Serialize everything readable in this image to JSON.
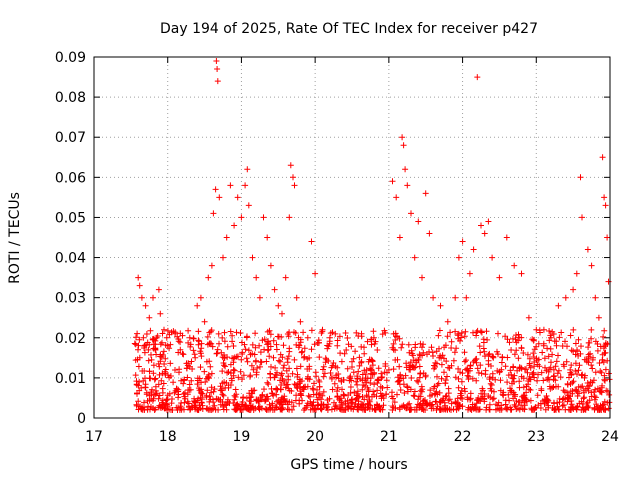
{
  "chart_data": {
    "type": "scatter",
    "title": "Day 194 of 2025, Rate Of TEC Index for receiver p427",
    "xlabel": "GPS time / hours",
    "ylabel": "ROTI / TECUs",
    "xlim": [
      17,
      24
    ],
    "ylim": [
      0,
      0.09
    ],
    "xticks": [
      "17",
      "18",
      "19",
      "20",
      "21",
      "22",
      "23",
      "24"
    ],
    "yticks": [
      "0",
      "0.01",
      "0.02",
      "0.03",
      "0.04",
      "0.05",
      "0.06",
      "0.07",
      "0.08",
      "0.09"
    ],
    "grid": true,
    "marker": "+",
    "color": "#ff0000",
    "series": [
      {
        "name": "ROTI",
        "points": [
          [
            17.6,
            0.035
          ],
          [
            17.62,
            0.033
          ],
          [
            17.65,
            0.03
          ],
          [
            17.7,
            0.028
          ],
          [
            17.75,
            0.025
          ],
          [
            17.8,
            0.03
          ],
          [
            17.85,
            0.02
          ],
          [
            17.88,
            0.032
          ],
          [
            17.9,
            0.026
          ],
          [
            17.95,
            0.022
          ],
          [
            18.0,
            0.018
          ],
          [
            18.1,
            0.021
          ],
          [
            18.2,
            0.016
          ],
          [
            18.3,
            0.02
          ],
          [
            18.4,
            0.028
          ],
          [
            18.45,
            0.03
          ],
          [
            18.5,
            0.024
          ],
          [
            18.55,
            0.035
          ],
          [
            18.6,
            0.038
          ],
          [
            18.62,
            0.051
          ],
          [
            18.65,
            0.057
          ],
          [
            18.66,
            0.089
          ],
          [
            18.67,
            0.087
          ],
          [
            18.68,
            0.084
          ],
          [
            18.7,
            0.055
          ],
          [
            18.75,
            0.04
          ],
          [
            18.8,
            0.045
          ],
          [
            18.85,
            0.058
          ],
          [
            18.9,
            0.048
          ],
          [
            18.95,
            0.055
          ],
          [
            19.0,
            0.05
          ],
          [
            19.05,
            0.058
          ],
          [
            19.08,
            0.062
          ],
          [
            19.1,
            0.053
          ],
          [
            19.15,
            0.04
          ],
          [
            19.2,
            0.035
          ],
          [
            19.25,
            0.03
          ],
          [
            19.3,
            0.05
          ],
          [
            19.35,
            0.045
          ],
          [
            19.4,
            0.038
          ],
          [
            19.45,
            0.032
          ],
          [
            19.5,
            0.028
          ],
          [
            19.55,
            0.026
          ],
          [
            19.6,
            0.035
          ],
          [
            19.65,
            0.05
          ],
          [
            19.67,
            0.063
          ],
          [
            19.7,
            0.06
          ],
          [
            19.72,
            0.058
          ],
          [
            19.75,
            0.03
          ],
          [
            19.8,
            0.024
          ],
          [
            19.9,
            0.02
          ],
          [
            19.95,
            0.044
          ],
          [
            20.0,
            0.036
          ],
          [
            20.1,
            0.022
          ],
          [
            20.2,
            0.02
          ],
          [
            20.3,
            0.018
          ],
          [
            20.4,
            0.016
          ],
          [
            20.5,
            0.014
          ],
          [
            20.6,
            0.013
          ],
          [
            20.7,
            0.012
          ],
          [
            20.8,
            0.011
          ],
          [
            20.9,
            0.01
          ],
          [
            21.0,
            0.012
          ],
          [
            21.05,
            0.059
          ],
          [
            21.1,
            0.055
          ],
          [
            21.15,
            0.045
          ],
          [
            21.18,
            0.07
          ],
          [
            21.2,
            0.068
          ],
          [
            21.22,
            0.062
          ],
          [
            21.25,
            0.058
          ],
          [
            21.3,
            0.051
          ],
          [
            21.35,
            0.04
          ],
          [
            21.4,
            0.049
          ],
          [
            21.45,
            0.035
          ],
          [
            21.5,
            0.056
          ],
          [
            21.55,
            0.046
          ],
          [
            21.6,
            0.03
          ],
          [
            21.7,
            0.028
          ],
          [
            21.8,
            0.024
          ],
          [
            21.9,
            0.03
          ],
          [
            21.95,
            0.04
          ],
          [
            22.0,
            0.044
          ],
          [
            22.05,
            0.03
          ],
          [
            22.1,
            0.036
          ],
          [
            22.15,
            0.042
          ],
          [
            22.2,
            0.085
          ],
          [
            22.25,
            0.048
          ],
          [
            22.3,
            0.046
          ],
          [
            22.35,
            0.049
          ],
          [
            22.4,
            0.04
          ],
          [
            22.5,
            0.035
          ],
          [
            22.6,
            0.045
          ],
          [
            22.7,
            0.038
          ],
          [
            22.8,
            0.036
          ],
          [
            22.9,
            0.025
          ],
          [
            23.0,
            0.022
          ],
          [
            23.1,
            0.018
          ],
          [
            23.2,
            0.02
          ],
          [
            23.3,
            0.028
          ],
          [
            23.4,
            0.03
          ],
          [
            23.5,
            0.032
          ],
          [
            23.55,
            0.036
          ],
          [
            23.6,
            0.06
          ],
          [
            23.62,
            0.05
          ],
          [
            23.7,
            0.042
          ],
          [
            23.75,
            0.038
          ],
          [
            23.8,
            0.03
          ],
          [
            23.85,
            0.025
          ],
          [
            23.9,
            0.065
          ],
          [
            23.92,
            0.055
          ],
          [
            23.94,
            0.053
          ],
          [
            23.96,
            0.045
          ],
          [
            23.98,
            0.034
          ]
        ],
        "dense_band": {
          "x_range": [
            17.55,
            24.0
          ],
          "gap_x_range": [
            20.98,
            21.04
          ],
          "typical_range": [
            0.002,
            0.022
          ],
          "sample_count": 1800
        }
      }
    ]
  }
}
